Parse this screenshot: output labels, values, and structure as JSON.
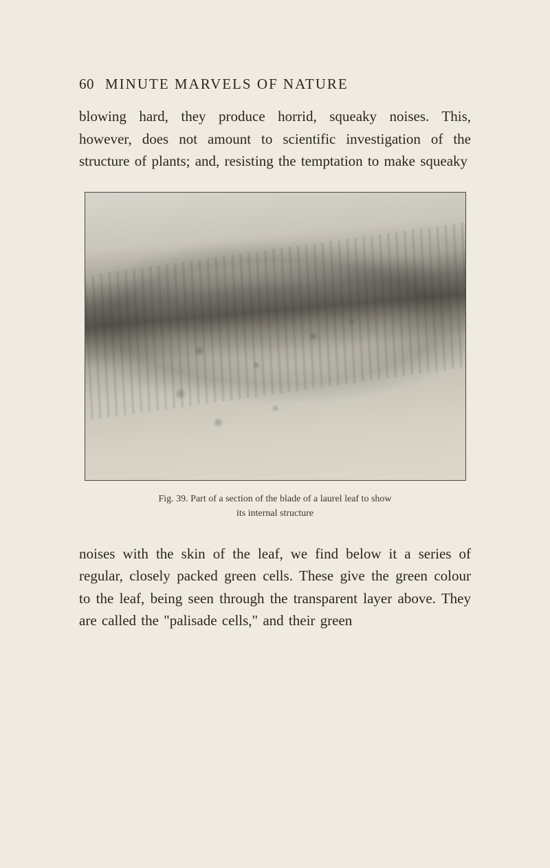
{
  "header": {
    "page_number": "60",
    "title": "MINUTE MARVELS OF NATURE"
  },
  "paragraphs": {
    "p1": "blowing hard, they produce horrid, squeaky noises. This, however, does not amount to scientific investigation of the structure of plants; and, resisting the temptation to make squeaky",
    "p2": "noises with the skin of the leaf, we find below it a series of regular, closely packed green cells. These give the green colour to the leaf, being seen through the transparent layer above. They are called the \"palisade cells,\" and their green"
  },
  "figure": {
    "caption_line1": "Fig. 39.  Part of a section of the blade of a laurel leaf to show",
    "caption_line2": "its internal structure"
  },
  "styling": {
    "page_bg": "#f0ebe0",
    "text_color": "#2a2520",
    "body_fontsize": 21,
    "caption_fontsize": 14,
    "figure_width": 555,
    "figure_height": 420,
    "figure_border": "#4a4540"
  }
}
